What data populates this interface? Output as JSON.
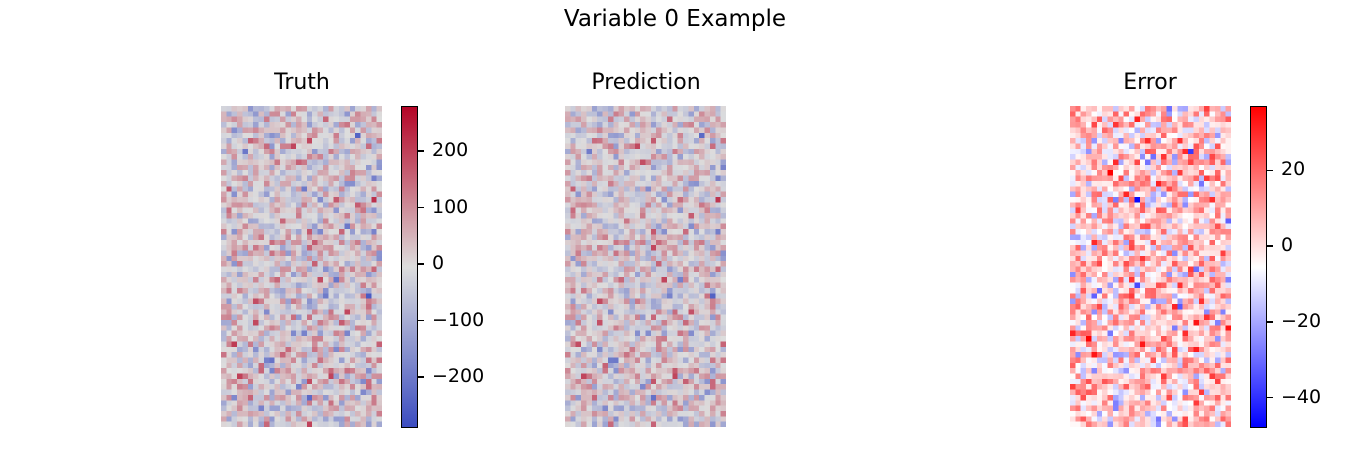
{
  "figure": {
    "title": "Variable 0 Example"
  },
  "chart_data": [
    {
      "type": "heatmap",
      "title": "Truth",
      "grid": {
        "rows": 60,
        "cols": 30
      },
      "colormap": "coolwarm",
      "colorbar": {
        "vmin": -290,
        "vmax": 280,
        "ticks": [
          200,
          100,
          0,
          -100,
          -200
        ],
        "tick_labels": [
          "200",
          "100",
          "0",
          "−100",
          "−200"
        ]
      },
      "axes_visible": false
    },
    {
      "type": "heatmap",
      "title": "Prediction",
      "grid": {
        "rows": 60,
        "cols": 30
      },
      "colormap": "coolwarm",
      "colorbar": null,
      "axes_visible": false
    },
    {
      "type": "heatmap",
      "title": "Error",
      "grid": {
        "rows": 60,
        "cols": 30
      },
      "colormap": "bwr",
      "colorbar": {
        "vmin": -48,
        "vmax": 37,
        "ticks": [
          20,
          0,
          -20,
          -40
        ],
        "tick_labels": [
          "20",
          "0",
          "−20",
          "−40"
        ]
      },
      "axes_visible": false
    }
  ],
  "colors": {
    "coolwarm_low": "#3b4cc0",
    "coolwarm_mid": "#dddddd",
    "coolwarm_high": "#b40426",
    "bwr_low": "#0000ff",
    "bwr_mid": "#ffffff",
    "bwr_high": "#ff0000"
  }
}
